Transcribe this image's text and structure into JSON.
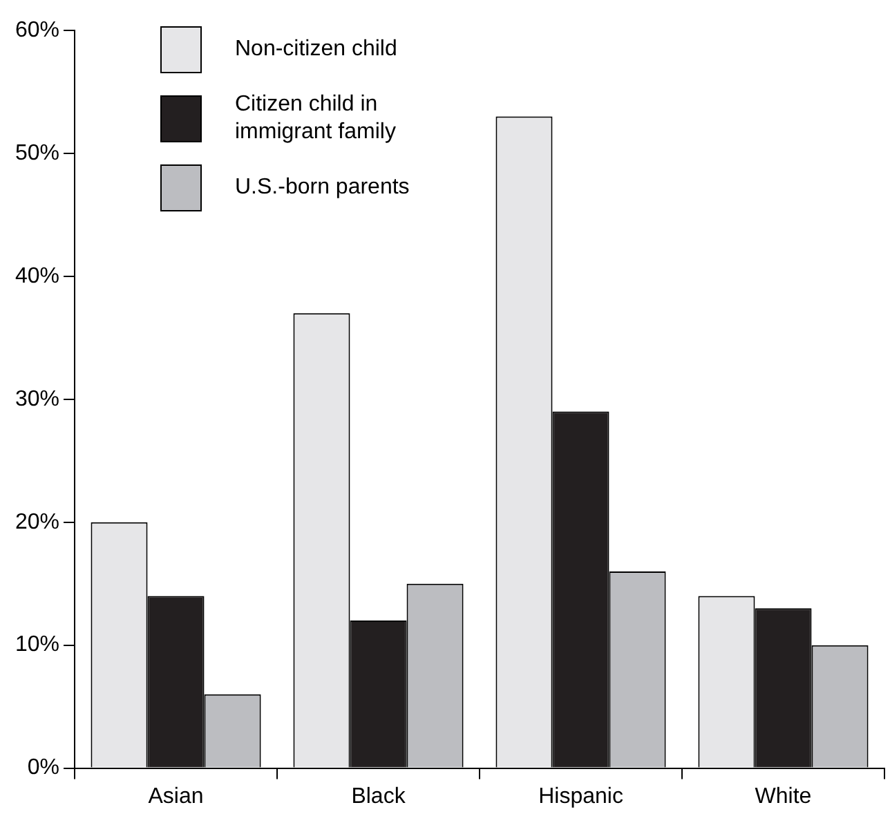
{
  "chart_data": {
    "type": "bar",
    "categories": [
      "Asian",
      "Black",
      "Hispanic",
      "White"
    ],
    "series": [
      {
        "name": "Non-citizen child",
        "color": "#e6e6e8",
        "values": [
          20,
          37,
          53,
          14
        ]
      },
      {
        "name": "Citizen child in immigrant family",
        "color": "#231f20",
        "values": [
          14,
          12,
          29,
          13
        ]
      },
      {
        "name": "U.S.-born parents",
        "color": "#bcbdc1",
        "values": [
          6,
          15,
          16,
          10
        ]
      }
    ],
    "ylim": [
      0,
      60
    ],
    "yticks": [
      {
        "value": 0,
        "label": "0%"
      },
      {
        "value": 10,
        "label": "10%"
      },
      {
        "value": 20,
        "label": "20%"
      },
      {
        "value": 30,
        "label": "30%"
      },
      {
        "value": 40,
        "label": "40%"
      },
      {
        "value": 50,
        "label": "50%"
      },
      {
        "value": 60,
        "label": "60%"
      }
    ],
    "grid": false,
    "legend": "top left"
  }
}
